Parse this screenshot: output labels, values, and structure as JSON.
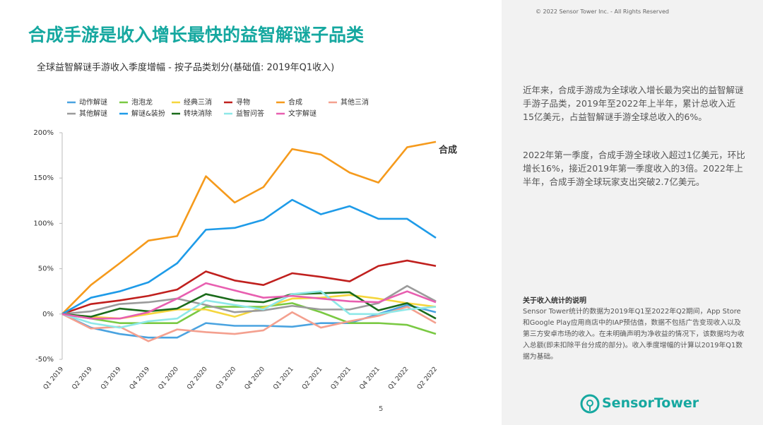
{
  "header": {
    "title": "合成手游是收入增长最快的益智解谜子品类",
    "copyright": "© 2022 Sensor Tower Inc. - All Rights Reserved"
  },
  "chart_data": {
    "type": "line",
    "title": "全球益智解谜手游收入季度增幅 - 按子品类划分(基础值: 2019年Q1收入)",
    "categories": [
      "Q1 2019",
      "Q2 2019",
      "Q3 2019",
      "Q4 2019",
      "Q1 2020",
      "Q2 2020",
      "Q3 2020",
      "Q4 2020",
      "Q1 2021",
      "Q2 2021",
      "Q3 2021",
      "Q4 2021",
      "Q1 2022",
      "Q2 2022"
    ],
    "ylim": [
      -50,
      200
    ],
    "yticks": [
      {
        "value": -50,
        "label": "-50%"
      },
      {
        "value": 0,
        "label": "0%"
      },
      {
        "value": 50,
        "label": "50%"
      },
      {
        "value": 100,
        "label": "100%"
      },
      {
        "value": 150,
        "label": "150%"
      },
      {
        "value": 200,
        "label": "200%"
      }
    ],
    "series": [
      {
        "name": "动作解谜",
        "color": "#4aa3e0",
        "values": [
          0,
          -15,
          -22,
          -26,
          -26,
          -10,
          -13,
          -13,
          -14,
          -10,
          -10,
          0,
          10,
          2
        ]
      },
      {
        "name": "泡泡龙",
        "color": "#7ac943",
        "values": [
          0,
          -5,
          -10,
          -10,
          -10,
          8,
          8,
          8,
          12,
          2,
          -10,
          -10,
          -12,
          -22
        ]
      },
      {
        "name": "经典三消",
        "color": "#f5d63d",
        "values": [
          0,
          -3,
          -5,
          0,
          5,
          5,
          -3,
          7,
          17,
          18,
          21,
          17,
          12,
          8
        ]
      },
      {
        "name": "寻物",
        "color": "#c0201e",
        "values": [
          0,
          11,
          15,
          20,
          27,
          47,
          37,
          32,
          45,
          41,
          36,
          53,
          59,
          53
        ]
      },
      {
        "name": "合成",
        "color": "#f59a1c",
        "values": [
          0,
          32,
          56,
          81,
          86,
          152,
          123,
          140,
          182,
          176,
          156,
          145,
          184,
          190
        ]
      },
      {
        "name": "其他三消",
        "color": "#f4a08f",
        "values": [
          0,
          -16,
          -14,
          -30,
          -17,
          -20,
          -22,
          -18,
          2,
          -15,
          -8,
          -2,
          8,
          -10
        ]
      },
      {
        "name": "其他解谜",
        "color": "#9b9b9b",
        "values": [
          0,
          3,
          11,
          13,
          17,
          10,
          2,
          4,
          9,
          5,
          5,
          12,
          31,
          14
        ]
      },
      {
        "name": "解谜&装扮",
        "color": "#1e9be8",
        "values": [
          0,
          18,
          25,
          35,
          56,
          93,
          95,
          104,
          126,
          110,
          119,
          105,
          105,
          84
        ]
      },
      {
        "name": "转块消除",
        "color": "#1a6b1a",
        "values": [
          0,
          -3,
          6,
          3,
          6,
          22,
          15,
          13,
          22,
          23,
          24,
          4,
          12,
          -5
        ]
      },
      {
        "name": "益智问答",
        "color": "#8ee8e8",
        "values": [
          0,
          -10,
          -15,
          -8,
          -5,
          15,
          10,
          5,
          22,
          25,
          0,
          0,
          5,
          8
        ]
      },
      {
        "name": "文字解谜",
        "color": "#e85fb0",
        "values": [
          0,
          -5,
          -5,
          2,
          17,
          34,
          26,
          18,
          20,
          17,
          14,
          13,
          25,
          13
        ]
      }
    ]
  },
  "panel": {
    "paragraphs": [
      "近年来，合成手游成为全球收入增长最为突出的益智解谜手游子品类，2019年至2022年上半年，累计总收入近15亿美元，占益智解谜手游全球总收入的6%。",
      "2022年第一季度，合成手游全球收入超过1亿美元，环比增长16%，接近2019年第一季度收入的3倍。2022年上半年，合成手游全球玩家支出突破2.7亿美元。"
    ],
    "note_title": "关于收入统计的说明",
    "note_body": "Sensor Tower统计的数据为2019年Q1至2022年Q2期间，App Store和Google Play应用商店中的IAP预估值，数据不包括广告变现收入以及第三方安卓市场的收入。在未明确声明为净收益的情况下，该数据均为收入总额(即未扣除平台分成的部分)。收入季度增幅的计算以2019年Q1数据为基础。",
    "logo": "SensorTower"
  },
  "footer": {
    "page": "5"
  }
}
